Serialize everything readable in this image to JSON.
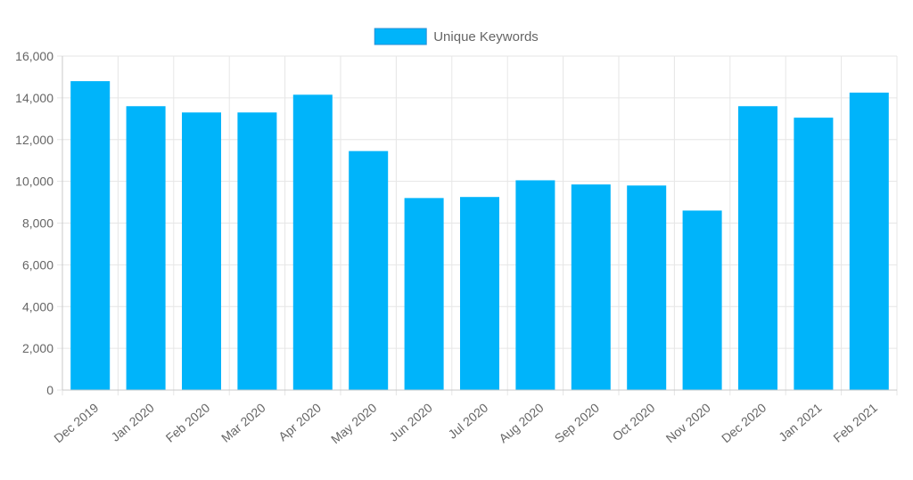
{
  "chart_data": {
    "type": "bar",
    "categories": [
      "Dec 2019",
      "Jan 2020",
      "Feb 2020",
      "Mar 2020",
      "Apr 2020",
      "May 2020",
      "Jun 2020",
      "Jul 2020",
      "Aug 2020",
      "Sep 2020",
      "Oct 2020",
      "Nov 2020",
      "Dec 2020",
      "Jan 2021",
      "Feb 2021"
    ],
    "series": [
      {
        "name": "Unique Keywords",
        "color": "#00b4fa",
        "values": [
          14800,
          13600,
          13300,
          13300,
          14150,
          11450,
          9200,
          9250,
          10050,
          9850,
          9800,
          8600,
          13600,
          13050,
          14250
        ]
      }
    ],
    "ylim": [
      0,
      16000
    ],
    "yticks": [
      0,
      2000,
      4000,
      6000,
      8000,
      10000,
      12000,
      14000,
      16000
    ],
    "grid": true,
    "legend": "top-center",
    "xlabel": "",
    "ylabel": ""
  }
}
